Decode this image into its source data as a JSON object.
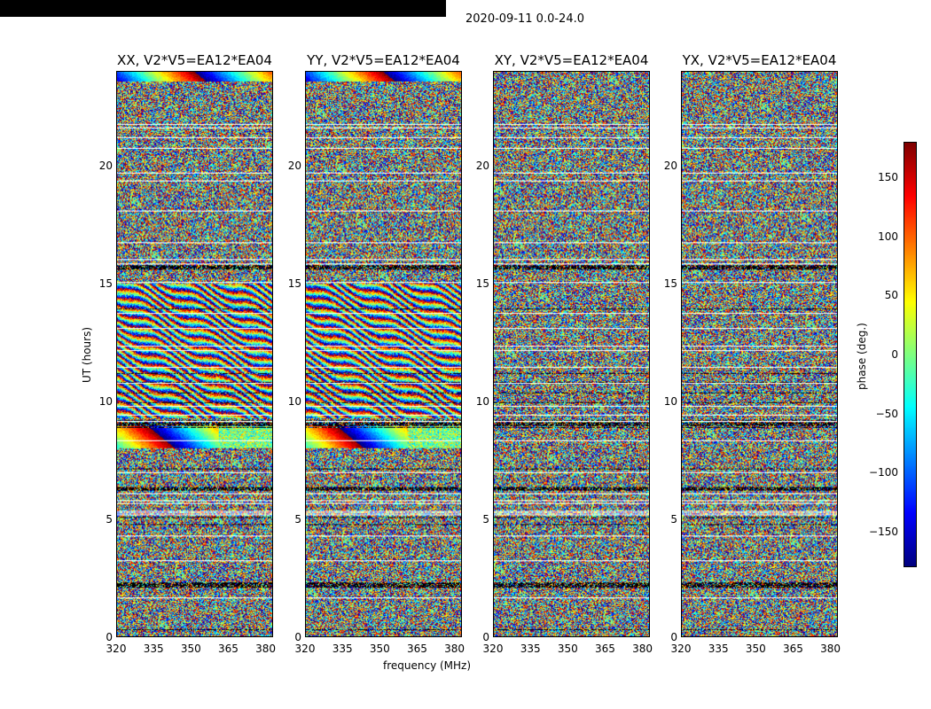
{
  "chart_data": {
    "type": "heatmap",
    "title": "2020-09-11 0.0-24.0",
    "xlabel": "frequency (MHz)",
    "ylabel": "UT (hours)",
    "xlim": [
      320,
      383
    ],
    "ylim": [
      0,
      24
    ],
    "xticks": [
      320,
      335,
      350,
      365,
      380
    ],
    "yticks": [
      0,
      5,
      10,
      15,
      20
    ],
    "panels": [
      {
        "title": "XX, V2*V5=EA12*EA04",
        "coherent_band_hours": [
          8,
          9
        ]
      },
      {
        "title": "YY, V2*V5=EA12*EA04",
        "coherent_band_hours": [
          8,
          9
        ]
      },
      {
        "title": "XY, V2*V5=EA12*EA04",
        "coherent_band_hours": []
      },
      {
        "title": "YX, V2*V5=EA12*EA04",
        "coherent_band_hours": []
      }
    ],
    "colorbar": {
      "label": "phase (deg.)",
      "range": [
        -180,
        180
      ],
      "ticks": [
        150,
        100,
        50,
        0,
        -50,
        -100,
        -150
      ],
      "tick_labels": [
        "150",
        "100",
        "50",
        "0",
        "−50",
        "−100",
        "−150"
      ],
      "colormap": "jet"
    }
  }
}
